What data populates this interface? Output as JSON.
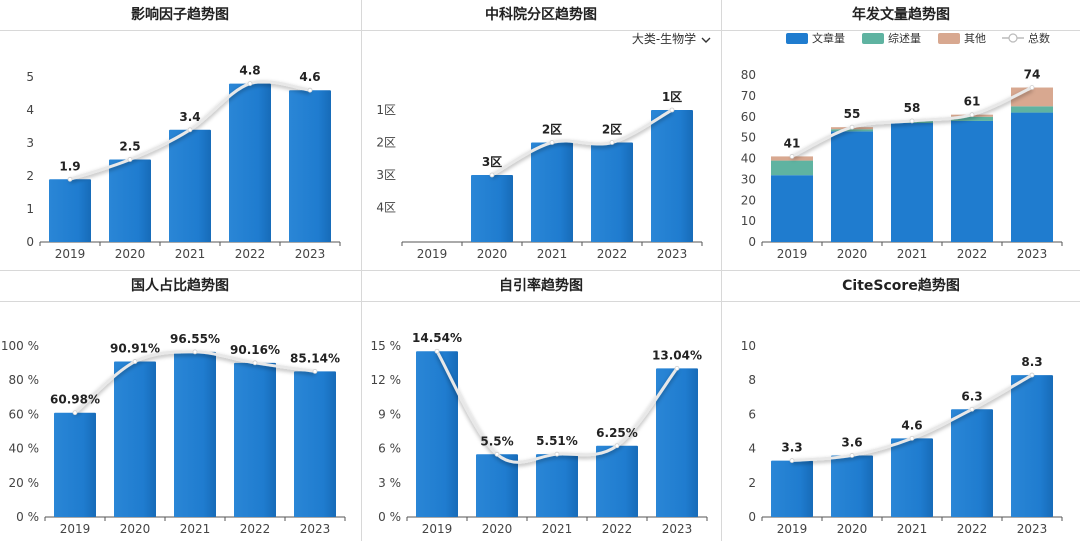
{
  "charts": [
    {
      "title": "影响因子趋势图",
      "chart_data": {
        "type": "bar",
        "categories": [
          "2019",
          "2020",
          "2021",
          "2022",
          "2023"
        ],
        "values": [
          1.9,
          2.5,
          3.4,
          4.8,
          4.6
        ],
        "labels": [
          "1.9",
          "2.5",
          "3.4",
          "4.8",
          "4.6"
        ],
        "ylim": [
          0,
          5
        ],
        "yticks": [
          "0",
          "1",
          "2",
          "3",
          "4",
          "5"
        ],
        "bar_color": "#1f7ccf",
        "trend_line": true
      }
    },
    {
      "title": "中科院分区趋势图",
      "dropdown": "大类-生物学",
      "chart_data": {
        "type": "bar",
        "categories": [
          "2019",
          "2020",
          "2021",
          "2022",
          "2023"
        ],
        "values": [
          null,
          3,
          2,
          2,
          1
        ],
        "labels": [
          "",
          "3区",
          "2区",
          "2区",
          "1区"
        ],
        "yticks": [
          "4区",
          "3区",
          "2区",
          "1区"
        ],
        "inverted_rank": true,
        "bar_color": "#1f7ccf",
        "trend_line": true
      }
    },
    {
      "title": "年发文量趋势图",
      "chart_data": {
        "type": "bar",
        "stacked": true,
        "categories": [
          "2019",
          "2020",
          "2021",
          "2022",
          "2023"
        ],
        "series": [
          {
            "name": "文章量",
            "values": [
              32,
              53,
              57,
              58,
              62
            ],
            "color": "#1f7ccf"
          },
          {
            "name": "综述量",
            "values": [
              7,
              1,
              1,
              2,
              3
            ],
            "color": "#5fb3a1"
          },
          {
            "name": "其他",
            "values": [
              2,
              1,
              0,
              1,
              9
            ],
            "color": "#d8a890"
          }
        ],
        "totals_name": "总数",
        "totals": [
          41,
          55,
          58,
          61,
          74
        ],
        "labels": [
          "41",
          "55",
          "58",
          "61",
          "74"
        ],
        "ylim": [
          0,
          80
        ],
        "yticks": [
          "0",
          "10",
          "20",
          "30",
          "40",
          "50",
          "60",
          "70",
          "80"
        ],
        "legend_position": "top",
        "trend_line": true
      }
    },
    {
      "title": "国人占比趋势图",
      "chart_data": {
        "type": "bar",
        "categories": [
          "2019",
          "2020",
          "2021",
          "2022",
          "2023"
        ],
        "values": [
          60.98,
          90.91,
          96.55,
          90.16,
          85.14
        ],
        "labels": [
          "60.98%",
          "90.91%",
          "96.55%",
          "90.16%",
          "85.14%"
        ],
        "ylim": [
          0,
          100
        ],
        "yticks": [
          "0 %",
          "20 %",
          "40 %",
          "60 %",
          "80 %",
          "100 %"
        ],
        "bar_color": "#1f7ccf",
        "trend_line": true
      }
    },
    {
      "title": "自引率趋势图",
      "chart_data": {
        "type": "bar",
        "categories": [
          "2019",
          "2020",
          "2021",
          "2022",
          "2023"
        ],
        "values": [
          14.54,
          5.5,
          5.51,
          6.25,
          13.04
        ],
        "labels": [
          "14.54%",
          "5.5%",
          "5.51%",
          "6.25%",
          "13.04%"
        ],
        "ylim": [
          0,
          15
        ],
        "yticks": [
          "0 %",
          "3 %",
          "6 %",
          "9 %",
          "12 %",
          "15 %"
        ],
        "bar_color": "#1f7ccf",
        "trend_line": true
      }
    },
    {
      "title": "CiteScore趋势图",
      "chart_data": {
        "type": "bar",
        "categories": [
          "2019",
          "2020",
          "2021",
          "2022",
          "2023"
        ],
        "values": [
          3.3,
          3.6,
          4.6,
          6.3,
          8.3
        ],
        "labels": [
          "3.3",
          "3.6",
          "4.6",
          "6.3",
          "8.3"
        ],
        "ylim": [
          0,
          10
        ],
        "yticks": [
          "0",
          "2",
          "4",
          "6",
          "8",
          "10"
        ],
        "bar_color": "#1f7ccf",
        "trend_line": true
      }
    }
  ]
}
